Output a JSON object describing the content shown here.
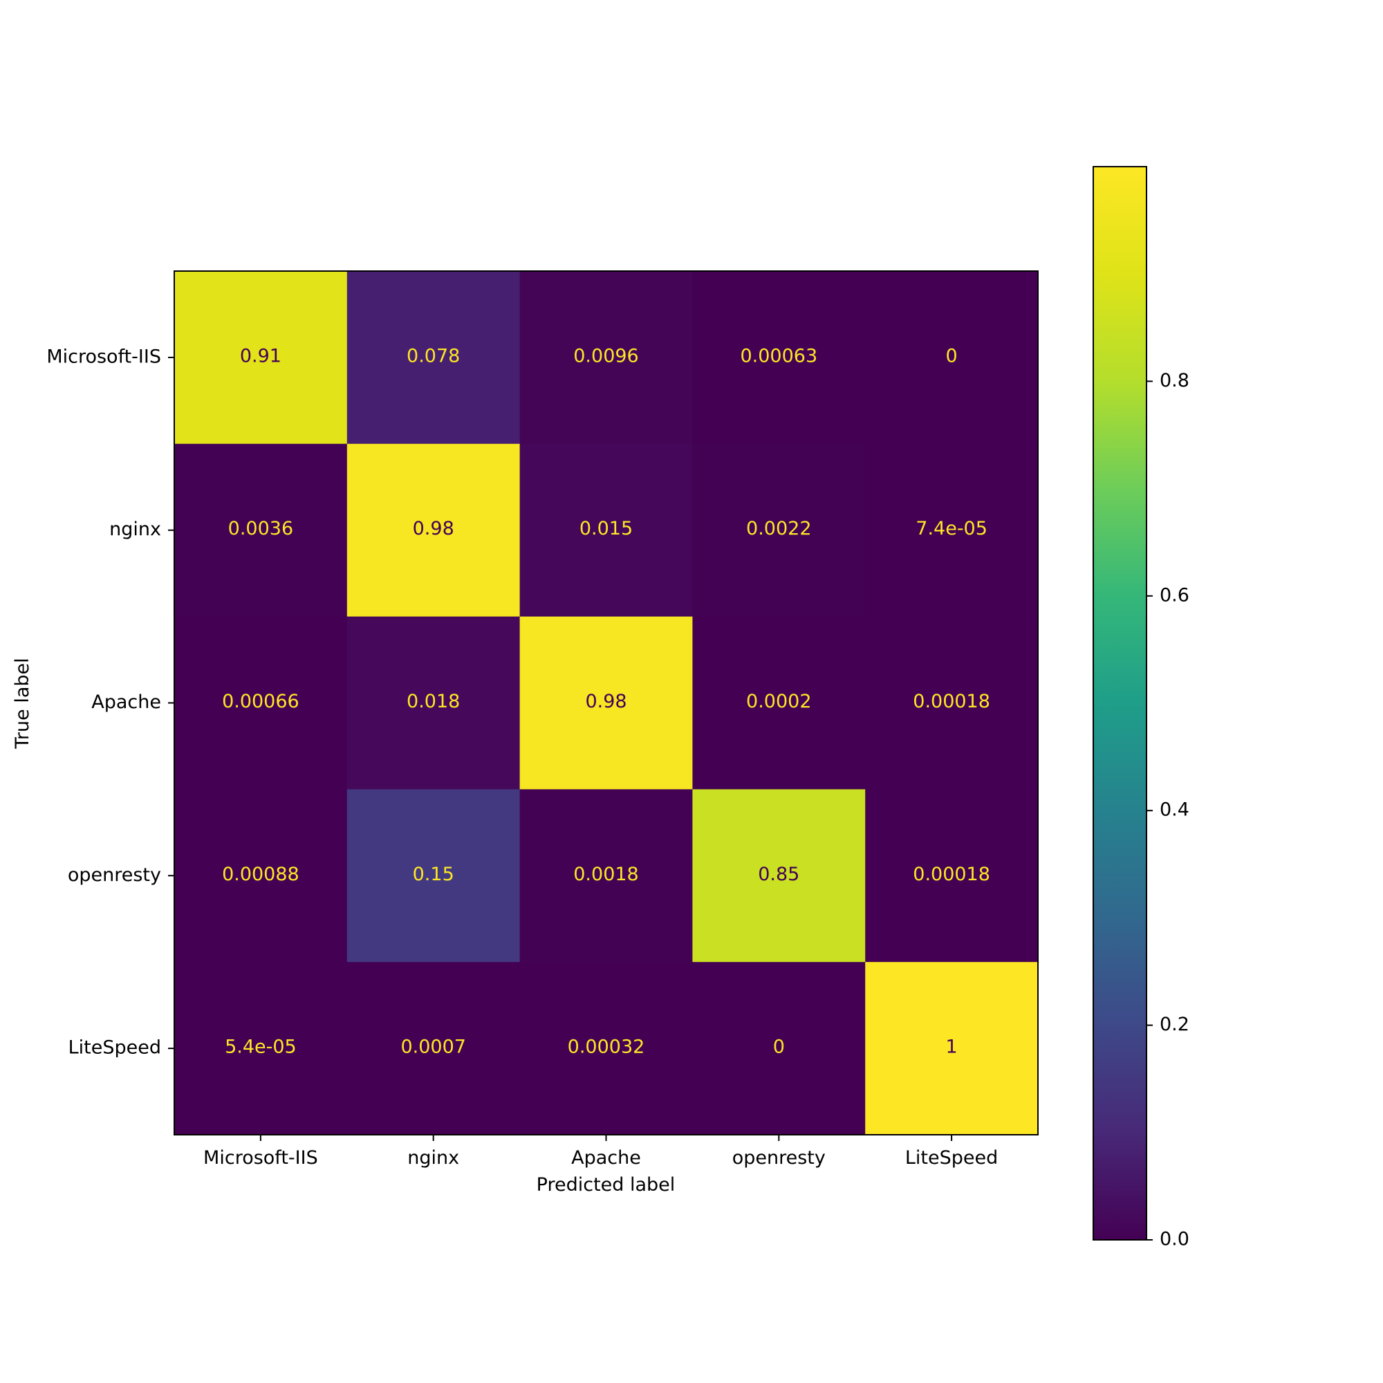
{
  "chart_data": {
    "type": "heatmap",
    "xlabel": "Predicted label",
    "ylabel": "True label",
    "x_categories": [
      "Microsoft-IIS",
      "nginx",
      "Apache",
      "openresty",
      "LiteSpeed"
    ],
    "y_categories": [
      "Microsoft-IIS",
      "nginx",
      "Apache",
      "openresty",
      "LiteSpeed"
    ],
    "values": [
      [
        0.91,
        0.078,
        0.0096,
        0.00063,
        0
      ],
      [
        0.0036,
        0.98,
        0.015,
        0.0022,
        7.4e-05
      ],
      [
        0.00066,
        0.018,
        0.98,
        0.0002,
        0.00018
      ],
      [
        0.00088,
        0.15,
        0.0018,
        0.85,
        0.00018
      ],
      [
        5.4e-05,
        0.0007,
        0.00032,
        0,
        1
      ]
    ],
    "cell_labels": [
      [
        "0.91",
        "0.078",
        "0.0096",
        "0.00063",
        "0"
      ],
      [
        "0.0036",
        "0.98",
        "0.015",
        "0.0022",
        "7.4e-05"
      ],
      [
        "0.00066",
        "0.018",
        "0.98",
        "0.0002",
        "0.00018"
      ],
      [
        "0.00088",
        "0.15",
        "0.0018",
        "0.85",
        "0.00018"
      ],
      [
        "5.4e-05",
        "0.0007",
        "0.00032",
        "0",
        "1"
      ]
    ],
    "colormap": "viridis",
    "colorbar": {
      "range": [
        0,
        1
      ],
      "ticks": [
        0.0,
        0.2,
        0.4,
        0.6,
        0.8
      ],
      "tick_labels": [
        "0.0",
        "0.2",
        "0.4",
        "0.6",
        "0.8"
      ]
    },
    "text_colors": {
      "light": "#fde725",
      "dark": "#440154"
    }
  }
}
